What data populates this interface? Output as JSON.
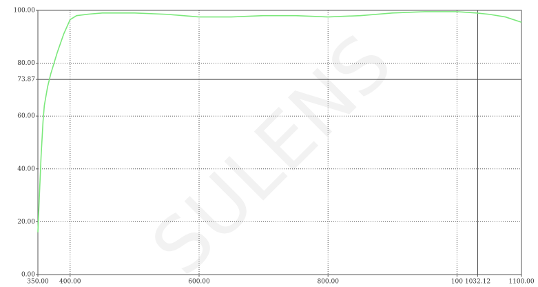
{
  "chart_data": {
    "type": "line",
    "watermark": "SULENS",
    "x": [
      350,
      352,
      355,
      358,
      360,
      365,
      370,
      375,
      380,
      390,
      400,
      410,
      430,
      450,
      500,
      550,
      600,
      650,
      700,
      750,
      800,
      850,
      900,
      950,
      1000,
      1030,
      1050,
      1075,
      1100
    ],
    "series": [
      {
        "color": "#7be87b",
        "values": [
          16,
          28,
          45,
          58,
          64,
          71,
          76,
          80,
          84,
          91,
          96.5,
          98,
          98.6,
          99,
          99,
          98.5,
          97.5,
          97.5,
          98,
          98,
          97.5,
          98,
          99,
          99.5,
          99.5,
          99,
          98.5,
          97.5,
          95.5
        ]
      }
    ],
    "xlim": [
      350,
      1100
    ],
    "ylim": [
      0,
      100
    ],
    "xticks": [
      {
        "value": 350,
        "label": "350.00"
      },
      {
        "value": 400,
        "label": "400.00"
      },
      {
        "value": 600,
        "label": "600.00"
      },
      {
        "value": 800,
        "label": "800.00"
      },
      100,
      1032.12,
      {
        "value": 1100,
        "label": "1100.00"
      }
    ],
    "yticks": [
      {
        "value": 0,
        "label": "0.00"
      },
      {
        "value": 20,
        "label": "20.00"
      },
      {
        "value": 40,
        "label": "40.00"
      },
      {
        "value": 60,
        "label": "60.00"
      },
      73.87,
      {
        "value": 80,
        "label": "80.00"
      },
      {
        "value": 100,
        "label": "100.00"
      }
    ],
    "grid_x": [
      400,
      600,
      800,
      1000
    ],
    "grid_y": [
      20,
      40,
      60,
      80
    ],
    "cursor_x": 1032.12,
    "cursor_y": 73.87
  }
}
